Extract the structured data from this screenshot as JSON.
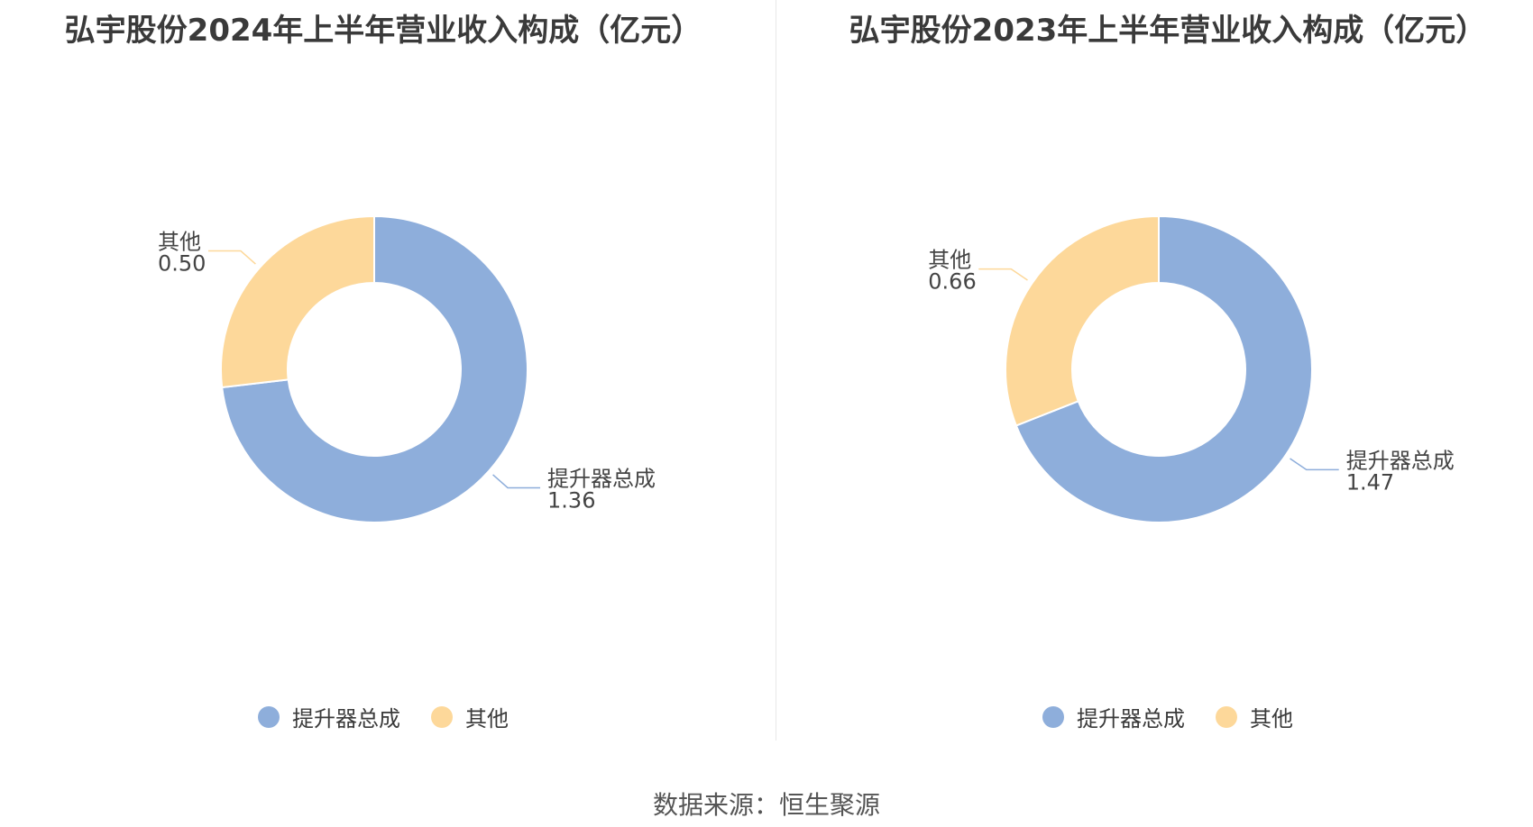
{
  "colors": {
    "main": "#8eaedb",
    "other": "#fdd89a"
  },
  "chart_data": [
    {
      "type": "pie",
      "title": "弘宇股份2024年上半年营业收入构成（亿元）",
      "legend": "bottom",
      "slices": [
        {
          "name": "提升器总成",
          "value": 1.36,
          "label_value": "1.36"
        },
        {
          "name": "其他",
          "value": 0.5,
          "label_value": "0.50"
        }
      ]
    },
    {
      "type": "pie",
      "title": "弘宇股份2023年上半年营业收入构成（亿元）",
      "legend": "bottom",
      "slices": [
        {
          "name": "提升器总成",
          "value": 1.47,
          "label_value": "1.47"
        },
        {
          "name": "其他",
          "value": 0.66,
          "label_value": "0.66"
        }
      ]
    }
  ],
  "source": "数据来源：恒生聚源"
}
